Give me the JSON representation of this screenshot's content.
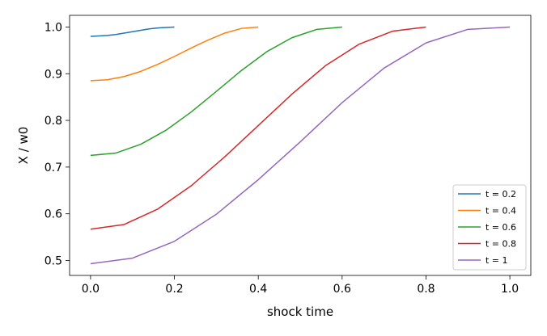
{
  "chart_data": {
    "type": "line",
    "xlabel": "shock time",
    "ylabel": "X / w0",
    "xlim": [
      -0.05,
      1.05
    ],
    "ylim": [
      0.468,
      1.025
    ],
    "xticks": [
      0.0,
      0.2,
      0.4,
      0.6,
      0.8,
      1.0
    ],
    "xtick_labels": [
      "0.0",
      "0.2",
      "0.4",
      "0.6",
      "0.8",
      "1.0"
    ],
    "yticks": [
      0.5,
      0.6,
      0.7,
      0.8,
      0.9,
      1.0
    ],
    "ytick_labels": [
      "0.5",
      "0.6",
      "0.7",
      "0.8",
      "0.9",
      "1.0"
    ],
    "grid": false,
    "legend_position": "lower-right",
    "series": [
      {
        "name": "t = 0.2",
        "color": "#1f77b4",
        "x": [
          0.0,
          0.02,
          0.04,
          0.06,
          0.08,
          0.1,
          0.12,
          0.14,
          0.16,
          0.18,
          0.2
        ],
        "y": [
          0.98,
          0.981,
          0.982,
          0.984,
          0.987,
          0.99,
          0.993,
          0.996,
          0.998,
          0.999,
          1.0
        ]
      },
      {
        "name": "t = 0.4",
        "color": "#ff7f0e",
        "x": [
          0.0,
          0.04,
          0.08,
          0.12,
          0.16,
          0.2,
          0.24,
          0.28,
          0.32,
          0.36,
          0.4
        ],
        "y": [
          0.885,
          0.887,
          0.894,
          0.905,
          0.92,
          0.937,
          0.955,
          0.972,
          0.987,
          0.997,
          1.0
        ]
      },
      {
        "name": "t = 0.6",
        "color": "#2ca02c",
        "x": [
          0.0,
          0.06,
          0.12,
          0.18,
          0.24,
          0.3,
          0.36,
          0.42,
          0.48,
          0.54,
          0.6
        ],
        "y": [
          0.725,
          0.73,
          0.749,
          0.779,
          0.818,
          0.862,
          0.907,
          0.947,
          0.977,
          0.995,
          1.0
        ]
      },
      {
        "name": "t = 0.8",
        "color": "#d62728",
        "x": [
          0.0,
          0.08,
          0.16,
          0.24,
          0.32,
          0.4,
          0.48,
          0.56,
          0.64,
          0.72,
          0.8
        ],
        "y": [
          0.567,
          0.577,
          0.61,
          0.66,
          0.722,
          0.789,
          0.856,
          0.917,
          0.963,
          0.991,
          1.0
        ]
      },
      {
        "name": "t = 1",
        "color": "#9467bd",
        "x": [
          0.0,
          0.1,
          0.2,
          0.3,
          0.4,
          0.5,
          0.6,
          0.7,
          0.8,
          0.9,
          1.0
        ],
        "y": [
          0.493,
          0.505,
          0.541,
          0.599,
          0.673,
          0.754,
          0.838,
          0.912,
          0.966,
          0.995,
          1.0
        ]
      }
    ]
  }
}
